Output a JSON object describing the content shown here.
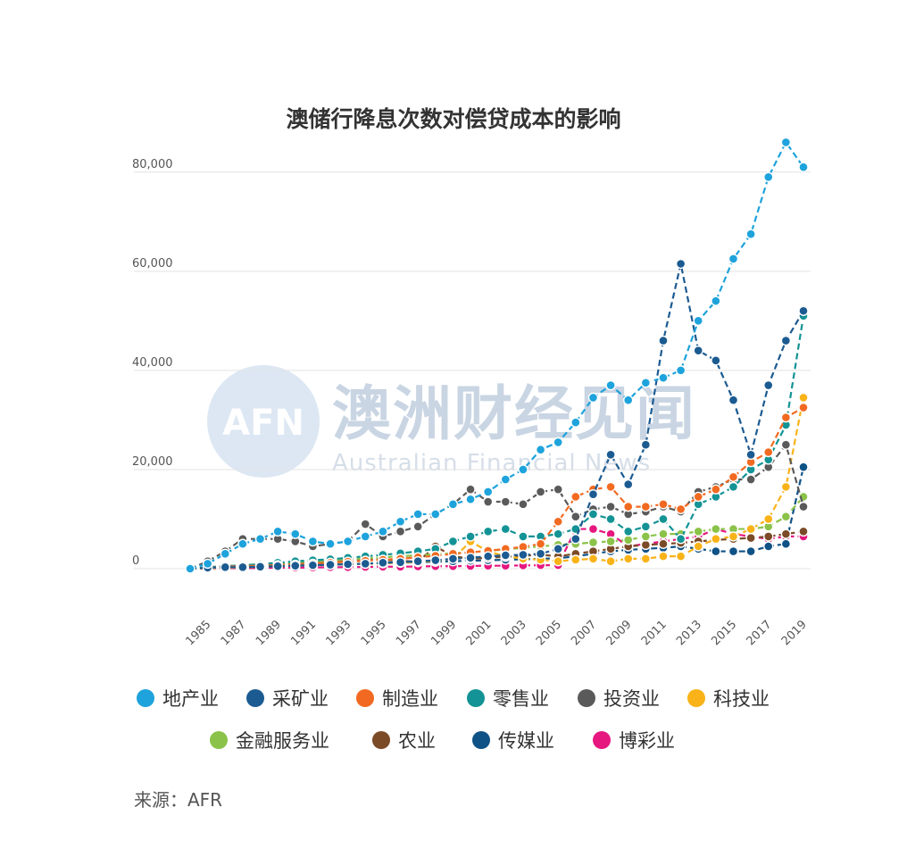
{
  "watermark": {
    "logo": "AFN",
    "name": "澳洲财经见闻",
    "subtitle": "Australian Financial News"
  },
  "source_label": "来源：AFR",
  "chart_data": {
    "type": "line",
    "title": "澳储行降息次数对偿贷成本的影响",
    "xlabel": "",
    "ylabel": "",
    "ylim": [
      0,
      85000
    ],
    "yticks": [
      0,
      20000,
      40000,
      60000,
      80000
    ],
    "ytick_labels": [
      "0",
      "20,000",
      "40,000",
      "60,000",
      "80,000"
    ],
    "x": [
      1984,
      1985,
      1986,
      1987,
      1988,
      1989,
      1990,
      1991,
      1992,
      1993,
      1994,
      1995,
      1996,
      1997,
      1998,
      1999,
      2000,
      2001,
      2002,
      2003,
      2004,
      2005,
      2006,
      2007,
      2008,
      2009,
      2010,
      2011,
      2012,
      2013,
      2014,
      2015,
      2016,
      2017,
      2018,
      2019
    ],
    "xtick_labels": [
      "1985",
      "1987",
      "1989",
      "1991",
      "1993",
      "1995",
      "1997",
      "1999",
      "2001",
      "2003",
      "2005",
      "2007",
      "2009",
      "2011",
      "2013",
      "2015",
      "2017",
      "2019"
    ],
    "grid": true,
    "legend_position": "bottom",
    "series": [
      {
        "name": "地产业",
        "color": "#1ea3dc",
        "values": [
          0,
          1000,
          3000,
          5000,
          6000,
          7500,
          7000,
          5500,
          5000,
          5500,
          6500,
          7500,
          9500,
          11000,
          11000,
          13000,
          14000,
          15500,
          18000,
          20000,
          24000,
          25500,
          29500,
          34500,
          37000,
          34000,
          37500,
          38500,
          40000,
          50000,
          54000,
          62500,
          67500,
          79000,
          86000,
          81000
        ]
      },
      {
        "name": "采矿业",
        "color": "#1c5b91",
        "values": [
          0,
          200,
          300,
          300,
          400,
          500,
          600,
          700,
          800,
          900,
          1000,
          1200,
          1300,
          1500,
          1700,
          2000,
          2200,
          2500,
          2700,
          2800,
          3000,
          4000,
          6000,
          15000,
          23000,
          17000,
          25000,
          46000,
          61500,
          44000,
          42000,
          34000,
          23000,
          37000,
          46000,
          52000
        ]
      },
      {
        "name": "制造业",
        "color": "#f26a21",
        "values": [
          0,
          200,
          400,
          500,
          600,
          700,
          800,
          1000,
          1200,
          1400,
          1600,
          1800,
          2000,
          2300,
          2600,
          3000,
          3300,
          3600,
          4000,
          4400,
          5000,
          9500,
          14500,
          16000,
          16500,
          12500,
          12500,
          13000,
          12000,
          14500,
          16000,
          18500,
          21500,
          23500,
          30500,
          32500
        ]
      },
      {
        "name": "零售业",
        "color": "#139395",
        "values": [
          0,
          300,
          500,
          700,
          900,
          1200,
          1500,
          1700,
          1900,
          2200,
          2500,
          2800,
          3100,
          3500,
          4000,
          5500,
          6500,
          7500,
          8000,
          6500,
          6500,
          7000,
          8000,
          11000,
          10000,
          7500,
          8500,
          10000,
          6000,
          13000,
          14500,
          16500,
          20000,
          22000,
          29000,
          51000
        ]
      },
      {
        "name": "投资业",
        "color": "#5a5a5a",
        "values": [
          0,
          1500,
          3500,
          6000,
          6000,
          6000,
          5500,
          4500,
          5000,
          5500,
          9000,
          6500,
          7500,
          8500,
          11000,
          13000,
          16000,
          13500,
          13500,
          13000,
          15500,
          16000,
          10500,
          12000,
          12500,
          11000,
          11500,
          12500,
          11500,
          15500,
          16500,
          18000,
          18000,
          20500,
          25000,
          12500
        ]
      },
      {
        "name": "科技业",
        "color": "#f9b319",
        "values": [
          0,
          100,
          200,
          300,
          400,
          500,
          600,
          700,
          800,
          900,
          1000,
          1100,
          1200,
          1400,
          1600,
          2000,
          5500,
          3500,
          2500,
          2000,
          1800,
          1500,
          1800,
          2000,
          1500,
          2000,
          2000,
          2500,
          2500,
          4500,
          6000,
          6500,
          8000,
          10000,
          16500,
          34500
        ]
      },
      {
        "name": "金融服务业",
        "color": "#8bc34a",
        "values": [
          0,
          300,
          500,
          700,
          900,
          1100,
          1300,
          1500,
          1700,
          1900,
          2100,
          2300,
          2500,
          2700,
          2900,
          3100,
          3300,
          3600,
          3900,
          4200,
          4500,
          4800,
          5000,
          5300,
          5500,
          5800,
          6500,
          7000,
          7000,
          7500,
          8000,
          8000,
          8000,
          8500,
          10500,
          14500
        ]
      },
      {
        "name": "农业",
        "color": "#7b4a27",
        "values": [
          0,
          200,
          400,
          600,
          800,
          1000,
          1200,
          1400,
          1600,
          1800,
          2000,
          1800,
          1600,
          1400,
          4500,
          2500,
          2000,
          2200,
          2400,
          2600,
          2800,
          2500,
          3000,
          3500,
          4000,
          4500,
          4800,
          5000,
          5200,
          5500,
          5800,
          6000,
          6200,
          6500,
          7000,
          7500
        ]
      },
      {
        "name": "传媒业",
        "color": "#0f5286",
        "values": [
          0,
          100,
          200,
          300,
          400,
          500,
          600,
          700,
          800,
          900,
          1000,
          1100,
          1200,
          1300,
          1400,
          1500,
          1600,
          1700,
          1800,
          1900,
          2000,
          2100,
          2500,
          3000,
          3500,
          3800,
          4000,
          4200,
          4500,
          4000,
          3500,
          3500,
          3500,
          4500,
          5000,
          20500
        ]
      },
      {
        "name": "博彩业",
        "color": "#e6177f",
        "values": [
          0,
          50,
          100,
          100,
          150,
          200,
          200,
          250,
          300,
          300,
          350,
          400,
          400,
          450,
          500,
          500,
          550,
          600,
          600,
          650,
          700,
          700,
          8000,
          8000,
          7000,
          4500,
          5000,
          5500,
          6000,
          6500,
          8000,
          7000,
          6500,
          6000,
          6500,
          6500
        ]
      }
    ]
  }
}
